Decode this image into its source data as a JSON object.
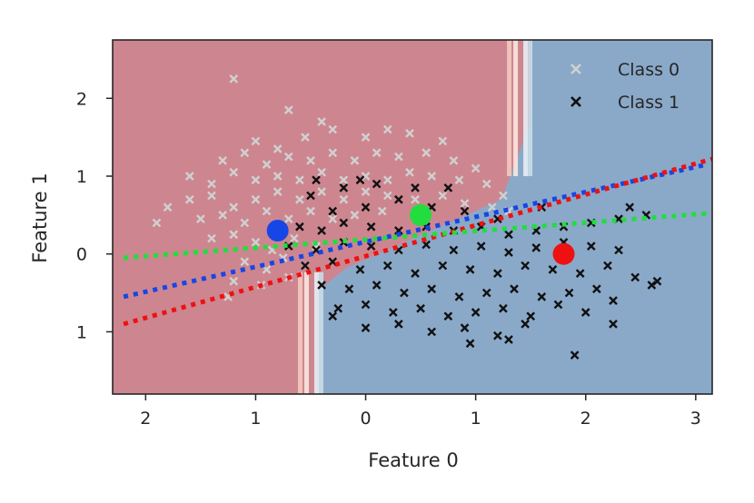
{
  "chart_data": {
    "type": "scatter",
    "title": "",
    "xlabel": "Feature 0",
    "ylabel": "Feature 1",
    "xlim": [
      -2.3,
      3.15
    ],
    "ylim": [
      -1.8,
      2.75
    ],
    "xticks": [
      -2,
      -1,
      0,
      1,
      2,
      3
    ],
    "xtick_labels": [
      "2",
      "1",
      "0",
      "1",
      "2",
      "3"
    ],
    "yticks": [
      2,
      1,
      0,
      -1
    ],
    "ytick_labels": [
      "2",
      "1",
      "0",
      "1"
    ],
    "grid": false,
    "legend_position": "top-right",
    "legend": [
      {
        "label": "Class 0",
        "color": "#d0d0d0",
        "marker": "x"
      },
      {
        "label": "Class 1",
        "color": "#111111",
        "marker": "x"
      }
    ],
    "decision_regions": {
      "class0_color": "#cd8690",
      "class1_color": "#8aa9c9",
      "boundary_x_top": 1.4,
      "boundary_x_bottom": -0.5
    },
    "centroids": [
      {
        "x": -0.8,
        "y": 0.3,
        "color": "#1746e6"
      },
      {
        "x": 0.5,
        "y": 0.5,
        "color": "#22dd3e"
      },
      {
        "x": 1.8,
        "y": 0.0,
        "color": "#ee1111"
      }
    ],
    "lines": [
      {
        "color": "#1746e6",
        "style": "dotted",
        "x": [
          -2.2,
          3.1
        ],
        "y": [
          -0.55,
          1.15
        ]
      },
      {
        "color": "#ee1111",
        "style": "dotted",
        "x": [
          -2.2,
          3.15
        ],
        "y": [
          -0.9,
          1.22
        ]
      },
      {
        "color": "#22dd3e",
        "style": "dotted",
        "x": [
          -2.2,
          3.1
        ],
        "y": [
          -0.05,
          0.52
        ]
      }
    ],
    "series": [
      {
        "name": "Class 0",
        "color": "#d0d0d0",
        "marker": "x",
        "points": [
          [
            -1.2,
            2.25
          ],
          [
            -0.7,
            1.85
          ],
          [
            -0.4,
            1.7
          ],
          [
            -1.0,
            1.45
          ],
          [
            -0.8,
            1.35
          ],
          [
            -0.55,
            1.5
          ],
          [
            -0.3,
            1.6
          ],
          [
            0.0,
            1.5
          ],
          [
            0.2,
            1.6
          ],
          [
            0.4,
            1.55
          ],
          [
            0.7,
            1.45
          ],
          [
            -1.3,
            1.2
          ],
          [
            -1.1,
            1.3
          ],
          [
            -0.9,
            1.15
          ],
          [
            -0.7,
            1.25
          ],
          [
            -0.5,
            1.2
          ],
          [
            -0.3,
            1.3
          ],
          [
            -0.1,
            1.2
          ],
          [
            0.1,
            1.3
          ],
          [
            0.3,
            1.25
          ],
          [
            0.55,
            1.3
          ],
          [
            0.8,
            1.2
          ],
          [
            1.0,
            1.1
          ],
          [
            -1.6,
            1.0
          ],
          [
            -1.4,
            0.9
          ],
          [
            -1.2,
            1.05
          ],
          [
            -1.0,
            0.95
          ],
          [
            -0.8,
            1.0
          ],
          [
            -0.6,
            0.95
          ],
          [
            -0.4,
            1.05
          ],
          [
            -0.2,
            0.95
          ],
          [
            0.0,
            1.0
          ],
          [
            0.2,
            0.95
          ],
          [
            0.4,
            1.05
          ],
          [
            0.6,
            1.0
          ],
          [
            0.85,
            0.95
          ],
          [
            1.1,
            0.9
          ],
          [
            1.25,
            0.75
          ],
          [
            -1.8,
            0.6
          ],
          [
            -1.6,
            0.7
          ],
          [
            -1.4,
            0.75
          ],
          [
            -1.2,
            0.6
          ],
          [
            -1.0,
            0.7
          ],
          [
            -0.8,
            0.8
          ],
          [
            -0.6,
            0.7
          ],
          [
            -0.4,
            0.8
          ],
          [
            -0.2,
            0.7
          ],
          [
            0.0,
            0.8
          ],
          [
            0.2,
            0.75
          ],
          [
            0.45,
            0.7
          ],
          [
            0.7,
            0.75
          ],
          [
            0.9,
            0.65
          ],
          [
            1.15,
            0.6
          ],
          [
            1.3,
            0.55
          ],
          [
            -1.9,
            0.4
          ],
          [
            -1.5,
            0.45
          ],
          [
            -1.3,
            0.5
          ],
          [
            -1.1,
            0.4
          ],
          [
            -0.9,
            0.55
          ],
          [
            -0.7,
            0.45
          ],
          [
            -0.5,
            0.55
          ],
          [
            -0.3,
            0.45
          ],
          [
            -0.1,
            0.5
          ],
          [
            0.15,
            0.55
          ],
          [
            -1.4,
            0.2
          ],
          [
            -1.2,
            0.25
          ],
          [
            -1.0,
            0.15
          ],
          [
            -0.85,
            0.05
          ],
          [
            -0.65,
            0.2
          ],
          [
            -0.45,
            0.1
          ],
          [
            -1.1,
            -0.1
          ],
          [
            -0.9,
            -0.2
          ],
          [
            -0.75,
            -0.05
          ],
          [
            -0.55,
            -0.15
          ],
          [
            -1.2,
            -0.35
          ],
          [
            -0.95,
            -0.4
          ],
          [
            -1.25,
            -0.55
          ],
          [
            -0.7,
            -0.3
          ]
        ]
      },
      {
        "name": "Class 1",
        "color": "#111111",
        "marker": "x",
        "points": [
          [
            -0.5,
            0.75
          ],
          [
            -0.2,
            0.85
          ],
          [
            0.1,
            0.9
          ],
          [
            -0.3,
            0.55
          ],
          [
            0.0,
            0.6
          ],
          [
            0.3,
            0.7
          ],
          [
            0.6,
            0.6
          ],
          [
            0.9,
            0.55
          ],
          [
            1.2,
            0.45
          ],
          [
            -0.6,
            0.35
          ],
          [
            -0.4,
            0.3
          ],
          [
            -0.2,
            0.4
          ],
          [
            0.05,
            0.35
          ],
          [
            0.3,
            0.3
          ],
          [
            0.55,
            0.35
          ],
          [
            0.8,
            0.3
          ],
          [
            1.05,
            0.35
          ],
          [
            1.3,
            0.25
          ],
          [
            1.55,
            0.3
          ],
          [
            1.8,
            0.35
          ],
          [
            2.05,
            0.4
          ],
          [
            2.3,
            0.45
          ],
          [
            2.55,
            0.5
          ],
          [
            -0.7,
            0.1
          ],
          [
            -0.45,
            0.05
          ],
          [
            -0.2,
            0.15
          ],
          [
            0.05,
            0.1
          ],
          [
            0.3,
            0.05
          ],
          [
            0.55,
            0.12
          ],
          [
            0.8,
            0.05
          ],
          [
            1.05,
            0.1
          ],
          [
            1.3,
            0.02
          ],
          [
            1.55,
            0.08
          ],
          [
            1.8,
            0.15
          ],
          [
            2.05,
            0.1
          ],
          [
            2.3,
            0.05
          ],
          [
            -0.55,
            -0.15
          ],
          [
            -0.3,
            -0.1
          ],
          [
            -0.05,
            -0.2
          ],
          [
            0.2,
            -0.15
          ],
          [
            0.45,
            -0.25
          ],
          [
            0.7,
            -0.15
          ],
          [
            0.95,
            -0.2
          ],
          [
            1.2,
            -0.25
          ],
          [
            1.45,
            -0.15
          ],
          [
            1.7,
            -0.2
          ],
          [
            1.95,
            -0.25
          ],
          [
            2.2,
            -0.15
          ],
          [
            2.45,
            -0.3
          ],
          [
            2.6,
            -0.4
          ],
          [
            -0.4,
            -0.4
          ],
          [
            -0.15,
            -0.45
          ],
          [
            0.1,
            -0.4
          ],
          [
            0.35,
            -0.5
          ],
          [
            0.6,
            -0.45
          ],
          [
            0.85,
            -0.55
          ],
          [
            1.1,
            -0.5
          ],
          [
            1.35,
            -0.45
          ],
          [
            1.6,
            -0.55
          ],
          [
            1.85,
            -0.5
          ],
          [
            2.1,
            -0.45
          ],
          [
            -0.25,
            -0.7
          ],
          [
            0.0,
            -0.65
          ],
          [
            0.25,
            -0.75
          ],
          [
            0.5,
            -0.7
          ],
          [
            0.75,
            -0.8
          ],
          [
            1.0,
            -0.75
          ],
          [
            1.25,
            -0.7
          ],
          [
            1.5,
            -0.8
          ],
          [
            1.75,
            -0.65
          ],
          [
            2.0,
            -0.75
          ],
          [
            2.25,
            -0.6
          ],
          [
            0.0,
            -0.95
          ],
          [
            0.3,
            -0.9
          ],
          [
            0.6,
            -1.0
          ],
          [
            0.9,
            -0.95
          ],
          [
            1.2,
            -1.05
          ],
          [
            1.45,
            -0.9
          ],
          [
            2.25,
            -0.9
          ],
          [
            -0.3,
            -0.8
          ],
          [
            0.95,
            -1.15
          ],
          [
            1.3,
            -1.1
          ],
          [
            1.9,
            -1.3
          ],
          [
            2.65,
            -0.35
          ],
          [
            1.6,
            0.6
          ],
          [
            2.4,
            0.6
          ],
          [
            -0.05,
            0.95
          ],
          [
            0.45,
            0.85
          ],
          [
            0.75,
            0.85
          ],
          [
            -0.45,
            0.95
          ]
        ]
      }
    ]
  }
}
